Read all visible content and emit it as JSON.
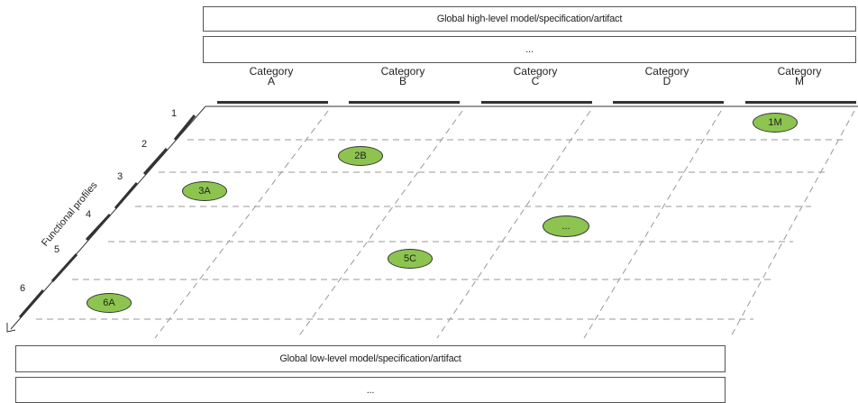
{
  "top_boxes": {
    "high_level": "Global high-level model/specification/artifact",
    "ellipsis": "..."
  },
  "categories": [
    {
      "line1": "Category",
      "line2": "A"
    },
    {
      "line1": "Category",
      "line2": "B"
    },
    {
      "line1": "Category",
      "line2": "C"
    },
    {
      "line1": "Category",
      "line2": "D"
    },
    {
      "line1": "Category",
      "line2": "M"
    }
  ],
  "profiles_axis": {
    "label": "Functional profiles",
    "numbers": [
      "1",
      "2",
      "3",
      "4",
      "5",
      "6"
    ]
  },
  "cells": [
    {
      "label": "1M",
      "row": 1,
      "col": "M"
    },
    {
      "label": "2B",
      "row": 2,
      "col": "B"
    },
    {
      "label": "3A",
      "row": 3,
      "col": "A"
    },
    {
      "label": "...",
      "row": 4,
      "col": "C"
    },
    {
      "label": "5C",
      "row": 5,
      "col": "C"
    },
    {
      "label": "6A",
      "row": 6,
      "col": "A"
    }
  ],
  "bottom_boxes": {
    "low_level": "Global low-level model/specification/artifact",
    "ellipsis": "..."
  },
  "colors": {
    "cell_fill": "#8dc44f",
    "grid": "#999999",
    "border": "#333333"
  }
}
